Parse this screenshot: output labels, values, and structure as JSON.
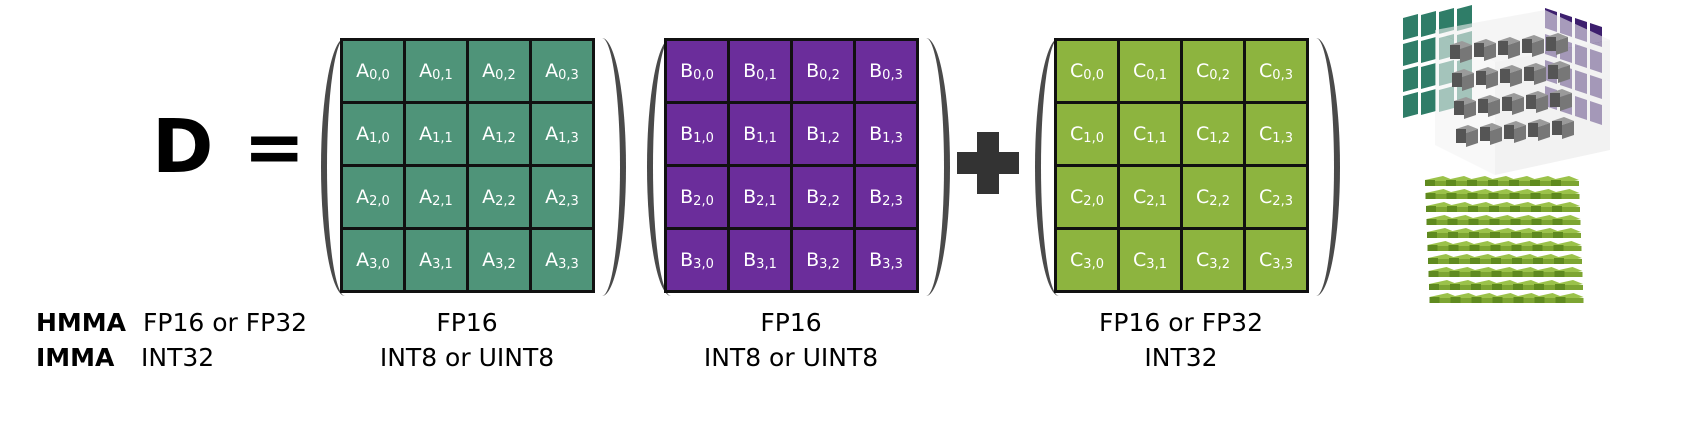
{
  "equation": {
    "lhs": "D =",
    "plus": "+"
  },
  "matrices": {
    "a": {
      "letter": "A",
      "cells": [
        [
          "0,0",
          "0,1",
          "0,2",
          "0,3"
        ],
        [
          "1,0",
          "1,1",
          "1,2",
          "1,3"
        ],
        [
          "2,0",
          "2,1",
          "2,2",
          "2,3"
        ],
        [
          "3,0",
          "3,1",
          "3,2",
          "3,3"
        ]
      ]
    },
    "b": {
      "letter": "B",
      "cells": [
        [
          "0,0",
          "0,1",
          "0,2",
          "0,3"
        ],
        [
          "1,0",
          "1,1",
          "1,2",
          "1,3"
        ],
        [
          "2,0",
          "2,1",
          "2,2",
          "2,3"
        ],
        [
          "3,0",
          "3,1",
          "3,2",
          "3,3"
        ]
      ]
    },
    "c": {
      "letter": "C",
      "cells": [
        [
          "0,0",
          "0,1",
          "0,2",
          "0,3"
        ],
        [
          "1,0",
          "1,1",
          "1,2",
          "1,3"
        ],
        [
          "2,0",
          "2,1",
          "2,2",
          "2,3"
        ],
        [
          "3,0",
          "3,1",
          "3,2",
          "3,3"
        ]
      ]
    }
  },
  "rows": {
    "hmma": {
      "name": "HMMA",
      "d": "FP16 or FP32",
      "a": "FP16",
      "b": "FP16",
      "c": "FP16 or FP32"
    },
    "imma": {
      "name": "IMMA",
      "d": "INT32",
      "a": "INT8 or UINT8",
      "b": "INT8 or UINT8",
      "c": "INT32"
    }
  },
  "colors": {
    "a": "#4f9479",
    "b": "#6b2d9b",
    "c": "#8db43f"
  },
  "illustration": "tensor-core-cube-icon"
}
